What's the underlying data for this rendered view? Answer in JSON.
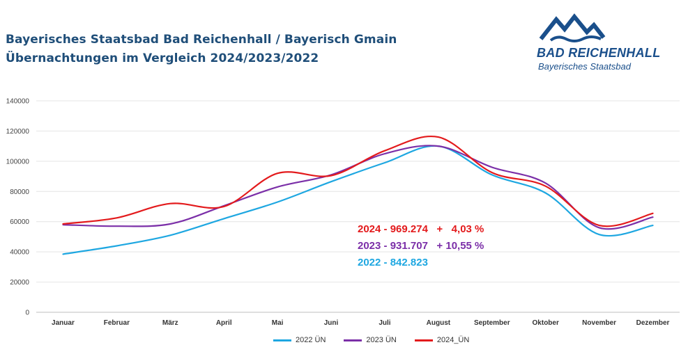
{
  "header": {
    "title_line1": "Bayerisches Staatsbad Bad Reichenhall / Bayerisch Gmain",
    "title_line2": "Übernachtungen im Vergleich 2024/2023/2022"
  },
  "logo": {
    "name": "BAD REICHENHALL",
    "subtitle": "Bayerisches Staatsbad",
    "color": "#1a4f8b"
  },
  "annotations": [
    {
      "text": "2024 - 969.274   +   4,03 %",
      "color": "#e31a1c"
    },
    {
      "text": "2023 - 931.707   + 10,55 %",
      "color": "#7b2fa8"
    },
    {
      "text": "2022 - 842.823",
      "color": "#1ea7e1"
    }
  ],
  "chart_data": {
    "type": "line",
    "title": "Übernachtungen im Vergleich 2024/2023/2022",
    "categories": [
      "Januar",
      "Februar",
      "März",
      "April",
      "Mai",
      "Juni",
      "Juli",
      "August",
      "September",
      "Oktober",
      "November",
      "Dezember"
    ],
    "ylim": [
      0,
      140000
    ],
    "yticks": [
      "0",
      "20000",
      "40000",
      "60000",
      "80000",
      "100000",
      "120000",
      "140000"
    ],
    "grid": true,
    "legend_position": "bottom",
    "series": [
      {
        "name": "2022 ÜN",
        "color": "#1ea7e1",
        "values": [
          38500,
          44000,
          51000,
          62000,
          73000,
          86500,
          99000,
          110000,
          91000,
          79000,
          51500,
          57500
        ]
      },
      {
        "name": "2023 ÜN",
        "color": "#7b2fa8",
        "values": [
          58000,
          57000,
          58500,
          70500,
          83000,
          91000,
          105000,
          110000,
          96000,
          85500,
          56000,
          63000
        ]
      },
      {
        "name": "2024_ÜN",
        "color": "#e31a1c",
        "values": [
          58500,
          62500,
          72000,
          70000,
          92000,
          90500,
          107000,
          116000,
          92500,
          83500,
          57500,
          65500
        ]
      }
    ]
  }
}
